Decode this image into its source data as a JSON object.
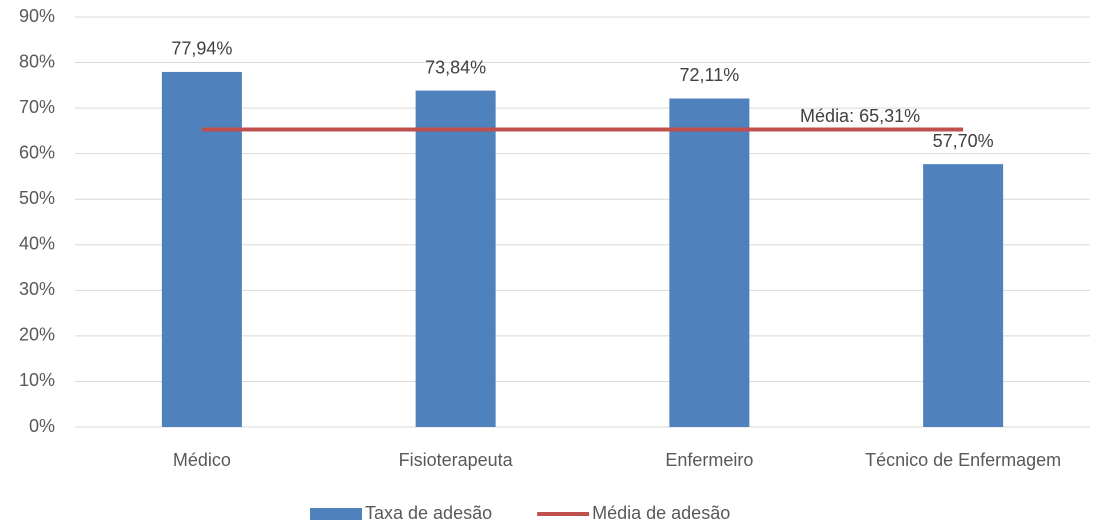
{
  "chart_data": {
    "type": "bar",
    "categories": [
      "Médico",
      "Fisioterapeuta",
      "Enfermeiro",
      "Técnico de Enfermagem"
    ],
    "series": [
      {
        "name": "Taxa de adesão",
        "type": "bar",
        "color": "#4f81bd",
        "values": [
          77.94,
          73.84,
          72.11,
          57.7
        ],
        "value_labels": [
          "77,94%",
          "73,84%",
          "72,11%",
          "57,70%"
        ]
      },
      {
        "name": "Média de adesão",
        "type": "line",
        "color": "#c0504d",
        "values": [
          65.31,
          65.31,
          65.31,
          65.31
        ]
      }
    ],
    "annotation": "Média: 65,31%",
    "ylim": [
      0,
      90
    ],
    "yticks": [
      {
        "value": 0,
        "label": "0%"
      },
      {
        "value": 10,
        "label": "10%"
      },
      {
        "value": 20,
        "label": "20%"
      },
      {
        "value": 30,
        "label": "30%"
      },
      {
        "value": 40,
        "label": "40%"
      },
      {
        "value": 50,
        "label": "50%"
      },
      {
        "value": 60,
        "label": "60%"
      },
      {
        "value": 70,
        "label": "70%"
      },
      {
        "value": 80,
        "label": "80%"
      },
      {
        "value": 90,
        "label": "90%"
      }
    ],
    "grid": true,
    "legend": "bottom"
  }
}
